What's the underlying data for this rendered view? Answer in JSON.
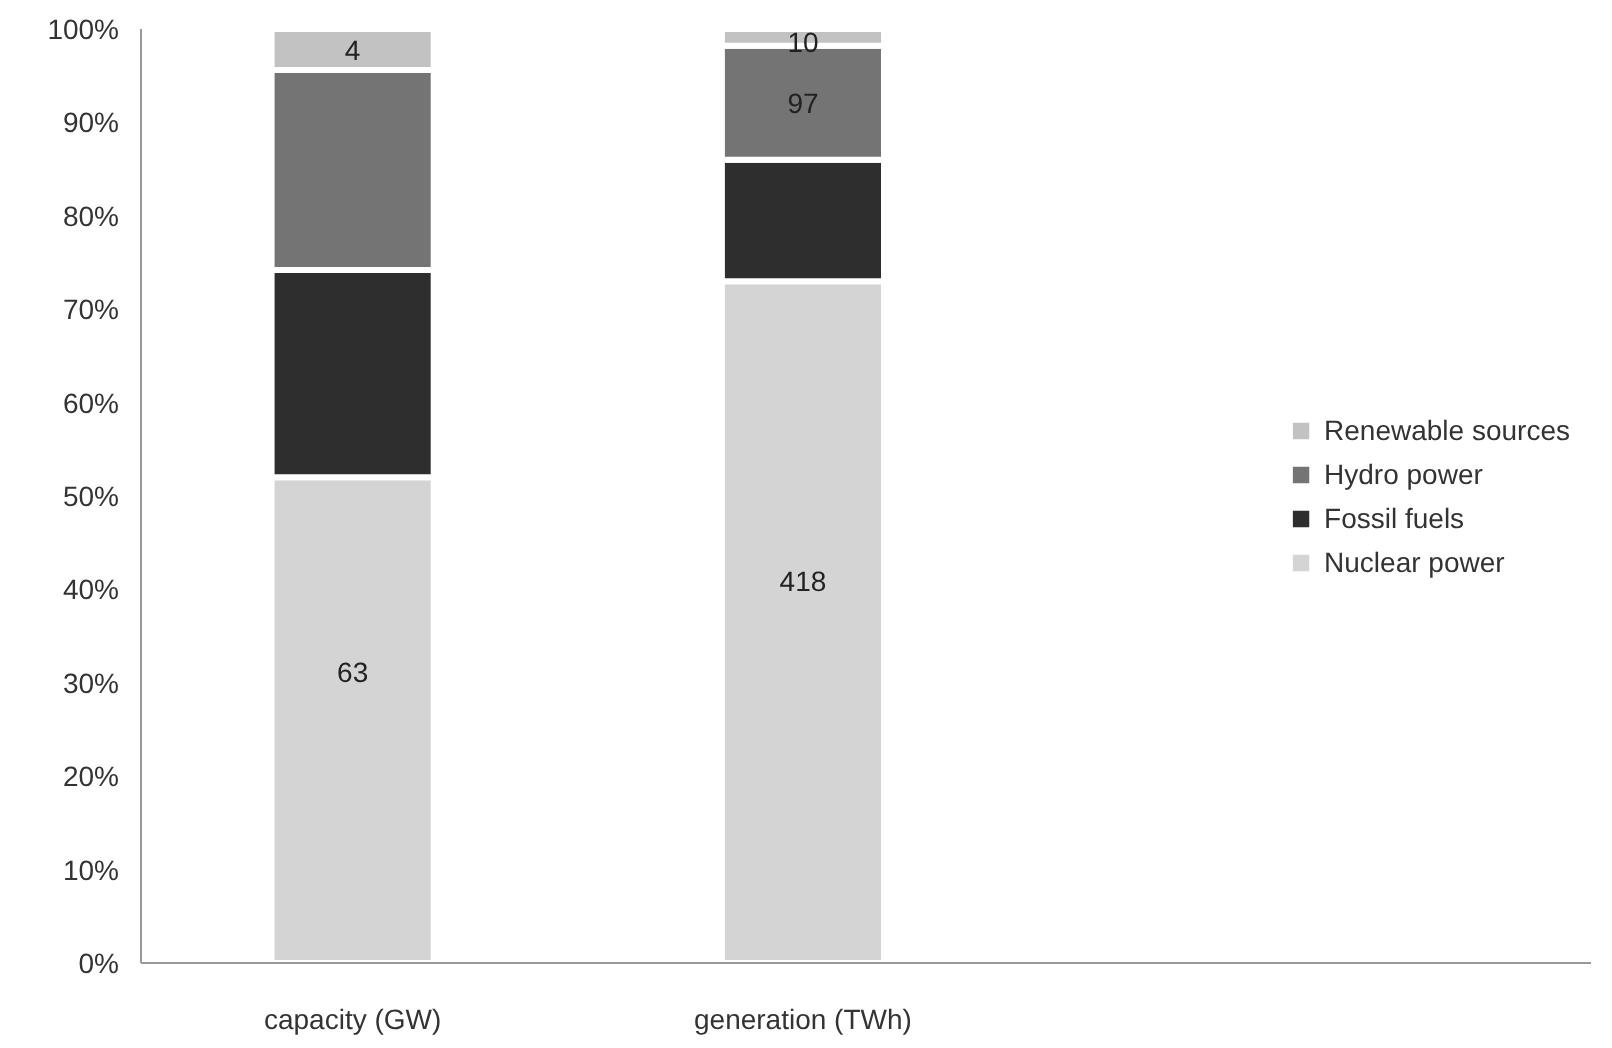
{
  "chart_data": {
    "type": "bar",
    "stacked": true,
    "categories": [
      "capacity (GW)",
      "generation (TWh)"
    ],
    "series": [
      {
        "name": "Nuclear power",
        "color": "#d4d4d4",
        "values": [
          52,
          73
        ]
      },
      {
        "name": "Fossil fuels",
        "color": "#2e2e2e",
        "values": [
          22.2,
          13
        ]
      },
      {
        "name": "Hydro power",
        "color": "#747474",
        "values": [
          21.4,
          12.2
        ]
      },
      {
        "name": "Renewable sources",
        "color": "#c2c2c2",
        "values": [
          4.4,
          1.8
        ]
      }
    ],
    "annotations": [
      "63",
      "4",
      "418",
      "97",
      "10"
    ],
    "ylim": [
      0,
      100
    ],
    "yticks": [
      {
        "value": 0,
        "label": "0%"
      },
      {
        "value": 10,
        "label": "10%"
      },
      {
        "value": 20,
        "label": "20%"
      },
      {
        "value": 30,
        "label": "30%"
      },
      {
        "value": 40,
        "label": "40%"
      },
      {
        "value": 50,
        "label": "50%"
      },
      {
        "value": 60,
        "label": "60%"
      },
      {
        "value": 70,
        "label": "70%"
      },
      {
        "value": 80,
        "label": "80%"
      },
      {
        "value": 90,
        "label": "90%"
      },
      {
        "value": 100,
        "label": "100%"
      }
    ],
    "legend": "right",
    "grid": false
  }
}
